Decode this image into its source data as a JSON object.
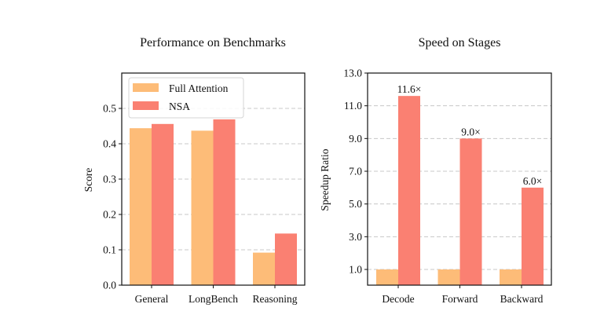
{
  "colors": {
    "full_attention": "#FDBC78",
    "nsa": "#FA8072"
  },
  "chart_data": [
    {
      "type": "bar",
      "title": "Performance on Benchmarks",
      "xlabel": "",
      "ylabel": "Score",
      "categories": [
        "General",
        "LongBench",
        "Reasoning"
      ],
      "series": [
        {
          "name": "Full Attention",
          "color": "#FDBC78",
          "values": [
            0.444,
            0.437,
            0.092
          ]
        },
        {
          "name": "NSA",
          "color": "#FA8072",
          "values": [
            0.456,
            0.469,
            0.146
          ]
        }
      ],
      "ylim": [
        0.0,
        0.6
      ],
      "yticks": [
        0.0,
        0.1,
        0.2,
        0.3,
        0.4,
        0.5
      ],
      "ytick_labels": [
        "0.0",
        "0.1",
        "0.2",
        "0.3",
        "0.4",
        "0.5"
      ],
      "grid": "y-dashed",
      "legend": {
        "placement": "top-left",
        "entries": [
          "Full Attention",
          "NSA"
        ]
      }
    },
    {
      "type": "bar",
      "title": "Speed on Stages",
      "xlabel": "",
      "ylabel": "Speedup Ratio",
      "categories": [
        "Decode",
        "Forward",
        "Backward"
      ],
      "series": [
        {
          "name": "Full Attention",
          "color": "#FDBC78",
          "values": [
            1.0,
            1.0,
            1.0
          ]
        },
        {
          "name": "NSA",
          "color": "#FA8072",
          "values": [
            11.6,
            9.0,
            6.0
          ]
        }
      ],
      "annotations": [
        "11.6×",
        "9.0×",
        "6.0×"
      ],
      "ylim": [
        0.04,
        13.0
      ],
      "yticks": [
        1.0,
        3.0,
        5.0,
        7.0,
        9.0,
        11.0,
        13.0
      ],
      "ytick_labels": [
        "1.0",
        "3.0",
        "5.0",
        "7.0",
        "9.0",
        "11.0",
        "13.0"
      ],
      "grid": "y-dashed",
      "legend": null
    }
  ]
}
